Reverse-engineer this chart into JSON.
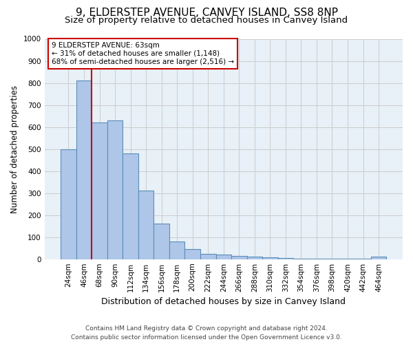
{
  "title": "9, ELDERSTEP AVENUE, CANVEY ISLAND, SS8 8NP",
  "subtitle": "Size of property relative to detached houses in Canvey Island",
  "xlabel": "Distribution of detached houses by size in Canvey Island",
  "ylabel": "Number of detached properties",
  "footer_line1": "Contains HM Land Registry data © Crown copyright and database right 2024.",
  "footer_line2": "Contains public sector information licensed under the Open Government Licence v3.0.",
  "bin_labels": [
    "24sqm",
    "46sqm",
    "68sqm",
    "90sqm",
    "112sqm",
    "134sqm",
    "156sqm",
    "178sqm",
    "200sqm",
    "222sqm",
    "244sqm",
    "266sqm",
    "288sqm",
    "310sqm",
    "332sqm",
    "354sqm",
    "376sqm",
    "398sqm",
    "420sqm",
    "442sqm",
    "464sqm"
  ],
  "bar_heights": [
    500,
    810,
    620,
    630,
    480,
    310,
    160,
    80,
    45,
    25,
    20,
    15,
    12,
    8,
    5,
    3,
    2,
    1,
    1,
    1,
    10
  ],
  "bar_color": "#aec6e8",
  "bar_edge_color": "#5b8db8",
  "red_line_label": "9 ELDERSTEP AVENUE: 63sqm",
  "annotation_line2": "← 31% of detached houses are smaller (1,148)",
  "annotation_line3": "68% of semi-detached houses are larger (2,516) →",
  "vline_color": "#cc0000",
  "annotation_box_color": "#cc0000",
  "vline_x_index": 1.5,
  "ylim": [
    0,
    1000
  ],
  "yticks": [
    0,
    100,
    200,
    300,
    400,
    500,
    600,
    700,
    800,
    900,
    1000
  ],
  "grid_color": "#cccccc",
  "bg_color": "#e8f0f8",
  "title_fontsize": 11,
  "subtitle_fontsize": 9.5,
  "ylabel_fontsize": 8.5,
  "xlabel_fontsize": 9,
  "tick_fontsize": 7.5,
  "footer_fontsize": 6.5,
  "annotation_fontsize": 7.5
}
